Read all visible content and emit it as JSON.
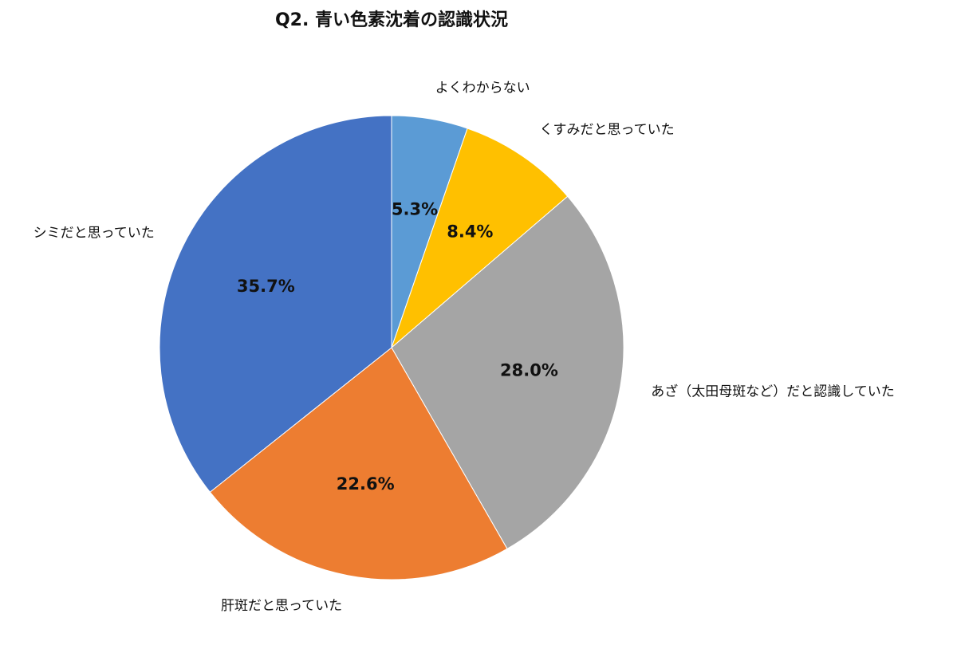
{
  "chart_data": {
    "type": "pie",
    "title": "Q2. 青い色素沈着の認識状況",
    "categories": [
      "よくわからない",
      "くすみだと思っていた",
      "あざ（太田母斑など）だと認識していた",
      "肝斑だと思っていた",
      "シミだと思っていた"
    ],
    "values": [
      5.3,
      8.4,
      28.0,
      22.6,
      35.7
    ],
    "value_labels": [
      "5.3%",
      "8.4%",
      "28.0%",
      "22.6%",
      "35.7%"
    ],
    "colors": [
      "#5b9bd5",
      "#ffc000",
      "#a5a5a5",
      "#ed7d31",
      "#4472c4"
    ]
  }
}
